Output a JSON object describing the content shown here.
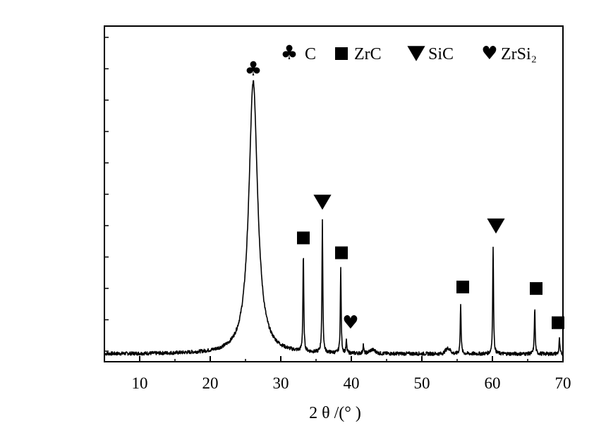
{
  "chart_data": {
    "type": "line",
    "title": "",
    "xlabel": "2 θ /(°  )",
    "ylabel": "",
    "xlim": [
      5,
      70
    ],
    "x_ticks": [
      10,
      20,
      30,
      40,
      50,
      60,
      70
    ],
    "y_ticks_labeled": false,
    "grid": false,
    "legend_position": "top-right",
    "legend": [
      {
        "symbol": "club",
        "label": "C"
      },
      {
        "symbol": "square",
        "label": "ZrC"
      },
      {
        "symbol": "down-triangle",
        "label": "SiC"
      },
      {
        "symbol": "heart",
        "label": "ZrSi₂"
      }
    ],
    "peaks": [
      {
        "x": 26.1,
        "height": 0.915,
        "phase": "C"
      },
      {
        "x": 33.2,
        "height": 0.33,
        "phase": "ZrC"
      },
      {
        "x": 35.9,
        "height": 0.44,
        "phase": "SiC"
      },
      {
        "x": 38.5,
        "height": 0.285,
        "phase": "ZrC"
      },
      {
        "x": 39.3,
        "height": 0.04,
        "phase": "ZrSi2"
      },
      {
        "x": 41.7,
        "height": 0.03,
        "phase": ""
      },
      {
        "x": 55.5,
        "height": 0.17,
        "phase": "ZrC"
      },
      {
        "x": 60.1,
        "height": 0.36,
        "phase": "SiC"
      },
      {
        "x": 66.0,
        "height": 0.155,
        "phase": "ZrC"
      },
      {
        "x": 69.5,
        "height": 0.05,
        "phase": "ZrC"
      }
    ],
    "markers": [
      {
        "symbol": "club",
        "x": 26.1,
        "y": 0.955
      },
      {
        "symbol": "square",
        "x": 33.2,
        "y": 0.39
      },
      {
        "symbol": "down-triangle",
        "x": 35.9,
        "y": 0.51
      },
      {
        "symbol": "square",
        "x": 38.6,
        "y": 0.34
      },
      {
        "symbol": "heart",
        "x": 39.9,
        "y": 0.105
      },
      {
        "symbol": "square",
        "x": 55.8,
        "y": 0.225
      },
      {
        "symbol": "down-triangle",
        "x": 60.5,
        "y": 0.43
      },
      {
        "symbol": "square",
        "x": 66.2,
        "y": 0.22
      },
      {
        "symbol": "square",
        "x": 69.3,
        "y": 0.105
      }
    ]
  }
}
